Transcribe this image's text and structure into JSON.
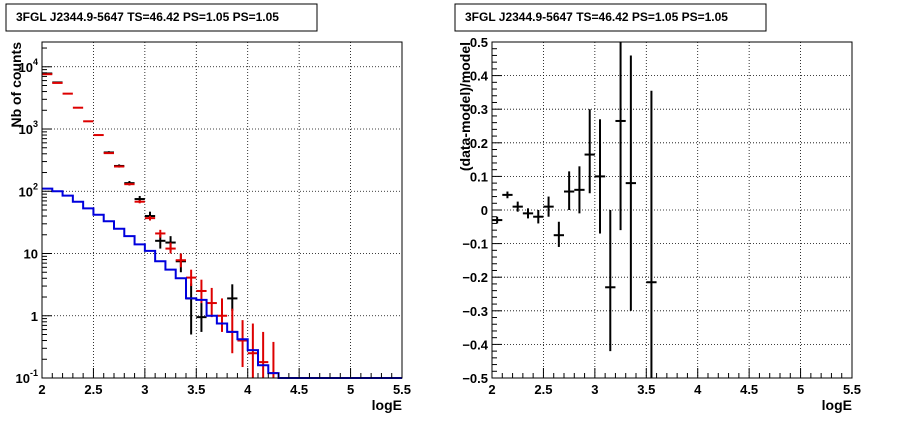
{
  "chart_data": [
    {
      "type": "scatter",
      "title": "3FGL J2344.9-5647 TS=46.42 PS=1.05 PS=1.05",
      "xlabel": "logE",
      "ylabel": "Nb of counts",
      "xlim": [
        2,
        5.5
      ],
      "ylim": [
        0.1,
        25000
      ],
      "yscale": "log",
      "grid": true,
      "x_ticks": [
        "2",
        "2.5",
        "3",
        "3.5",
        "4",
        "4.5",
        "5",
        "5.5"
      ],
      "y_ticks": [
        {
          "value": 0.1,
          "label": "10",
          "sup": "-1"
        },
        {
          "value": 1,
          "label": "1",
          "sup": ""
        },
        {
          "value": 10,
          "label": "10",
          "sup": ""
        },
        {
          "value": 100,
          "label": "10",
          "sup": "2"
        },
        {
          "value": 1000,
          "label": "10",
          "sup": "3"
        },
        {
          "value": 10000,
          "label": "10",
          "sup": "4"
        }
      ],
      "colors": {
        "data": "#000000",
        "model": "#dd0000",
        "background": "#0000dd"
      },
      "series": [
        {
          "kind": "errorbar",
          "color": "#000000",
          "points": [
            {
              "x": 2.05,
              "y": 7800,
              "lo": 7650,
              "hi": 7950
            },
            {
              "x": 2.15,
              "y": 5600,
              "lo": 5450,
              "hi": 5750
            },
            {
              "x": 2.65,
              "y": 420,
              "lo": 400,
              "hi": 440
            },
            {
              "x": 2.75,
              "y": 255,
              "lo": 240,
              "hi": 270
            },
            {
              "x": 2.85,
              "y": 135,
              "lo": 124,
              "hi": 146
            },
            {
              "x": 2.95,
              "y": 75,
              "lo": 66,
              "hi": 84
            },
            {
              "x": 3.05,
              "y": 40,
              "lo": 34,
              "hi": 47
            },
            {
              "x": 3.15,
              "y": 16,
              "lo": 12,
              "hi": 20
            },
            {
              "x": 3.25,
              "y": 15,
              "lo": 11,
              "hi": 19
            },
            {
              "x": 3.35,
              "y": 7.5,
              "lo": 5,
              "hi": 10
            },
            {
              "x": 3.45,
              "y": 1.9,
              "lo": 0.5,
              "hi": 3.3
            },
            {
              "x": 3.55,
              "y": 0.95,
              "lo": 0.55,
              "hi": 1.6
            },
            {
              "x": 3.85,
              "y": 1.9,
              "lo": 1.2,
              "hi": 3.2
            }
          ]
        },
        {
          "kind": "errorbar",
          "color": "#dd0000",
          "points": [
            {
              "x": 2.05,
              "y": 7600,
              "lo": 7500,
              "hi": 7700
            },
            {
              "x": 2.15,
              "y": 5500,
              "lo": 5400,
              "hi": 5600
            },
            {
              "x": 2.25,
              "y": 3700,
              "lo": 3700,
              "hi": 3700
            },
            {
              "x": 2.35,
              "y": 2200,
              "lo": 2200,
              "hi": 2200
            },
            {
              "x": 2.45,
              "y": 1330,
              "lo": 1330,
              "hi": 1330
            },
            {
              "x": 2.55,
              "y": 800,
              "lo": 800,
              "hi": 800
            },
            {
              "x": 2.65,
              "y": 410,
              "lo": 410,
              "hi": 410
            },
            {
              "x": 2.75,
              "y": 250,
              "lo": 250,
              "hi": 250
            },
            {
              "x": 2.85,
              "y": 130,
              "lo": 125,
              "hi": 136
            },
            {
              "x": 2.95,
              "y": 68,
              "lo": 64,
              "hi": 72
            },
            {
              "x": 3.05,
              "y": 37,
              "lo": 34,
              "hi": 40
            },
            {
              "x": 3.15,
              "y": 21,
              "lo": 18,
              "hi": 24
            },
            {
              "x": 3.25,
              "y": 12,
              "lo": 10,
              "hi": 15
            },
            {
              "x": 3.35,
              "y": 7.8,
              "lo": 6,
              "hi": 10
            },
            {
              "x": 3.45,
              "y": 4.1,
              "lo": 3,
              "hi": 5.5
            },
            {
              "x": 3.55,
              "y": 2.5,
              "lo": 1.6,
              "hi": 3.8
            },
            {
              "x": 3.65,
              "y": 1.6,
              "lo": 0.95,
              "hi": 2.8
            },
            {
              "x": 3.75,
              "y": 1.0,
              "lo": 0.55,
              "hi": 1.9
            },
            {
              "x": 3.85,
              "y": 0.55,
              "lo": 0.25,
              "hi": 1.3
            },
            {
              "x": 3.95,
              "y": 0.4,
              "lo": 0.15,
              "hi": 0.85
            },
            {
              "x": 4.05,
              "y": 0.25,
              "lo": 0.1,
              "hi": 0.75
            },
            {
              "x": 4.15,
              "y": 0.18,
              "lo": 0.1,
              "hi": 0.55
            },
            {
              "x": 4.25,
              "y": 0.12,
              "lo": 0.1,
              "hi": 0.38
            }
          ]
        },
        {
          "kind": "step",
          "color": "#0000dd",
          "edges": [
            2.0,
            2.1,
            2.2,
            2.3,
            2.4,
            2.5,
            2.6,
            2.7,
            2.8,
            2.9,
            3.0,
            3.1,
            3.2,
            3.3,
            3.4,
            3.5,
            3.6,
            3.7,
            3.8,
            3.9,
            4.0,
            4.1,
            4.2,
            4.3,
            5.5
          ],
          "values": [
            110,
            100,
            85,
            68,
            53,
            42,
            33,
            25,
            19,
            14,
            11,
            7.5,
            5.5,
            4.0,
            1.9,
            1.8,
            1.0,
            0.75,
            0.55,
            0.42,
            0.28,
            0.16,
            0.12,
            0.1
          ]
        }
      ]
    },
    {
      "type": "scatter",
      "title": "3FGL J2344.9-5647 TS=46.42 PS=1.05 PS=1.05",
      "xlabel": "logE",
      "ylabel": "(data-model)/model",
      "xlim": [
        2,
        5.5
      ],
      "ylim": [
        -0.5,
        0.5
      ],
      "yscale": "linear",
      "grid": true,
      "x_ticks": [
        "2",
        "2.5",
        "3",
        "3.5",
        "4",
        "4.5",
        "5",
        "5.5"
      ],
      "y_ticks": [
        "0.5",
        "0.4",
        "0.3",
        "0.2",
        "0.1",
        "0",
        "−0.1",
        "−0.2",
        "−0.3",
        "−0.4",
        "−0.5"
      ],
      "series": [
        {
          "kind": "errorbar",
          "color": "#000000",
          "points": [
            {
              "x": 2.05,
              "y": -0.03,
              "lo": -0.04,
              "hi": -0.02
            },
            {
              "x": 2.15,
              "y": 0.045,
              "lo": 0.035,
              "hi": 0.055
            },
            {
              "x": 2.25,
              "y": 0.01,
              "lo": -0.005,
              "hi": 0.025
            },
            {
              "x": 2.35,
              "y": -0.01,
              "lo": -0.025,
              "hi": 0.005
            },
            {
              "x": 2.45,
              "y": -0.02,
              "lo": -0.04,
              "hi": 0.0
            },
            {
              "x": 2.55,
              "y": 0.01,
              "lo": -0.02,
              "hi": 0.04
            },
            {
              "x": 2.65,
              "y": -0.075,
              "lo": -0.11,
              "hi": -0.035
            },
            {
              "x": 2.75,
              "y": 0.055,
              "lo": 0.0,
              "hi": 0.115
            },
            {
              "x": 2.85,
              "y": 0.06,
              "lo": -0.01,
              "hi": 0.13
            },
            {
              "x": 2.95,
              "y": 0.165,
              "lo": 0.05,
              "hi": 0.3
            },
            {
              "x": 3.05,
              "y": 0.1,
              "lo": -0.07,
              "hi": 0.27
            },
            {
              "x": 3.15,
              "y": -0.23,
              "lo": -0.42,
              "hi": 0.0
            },
            {
              "x": 3.25,
              "y": 0.265,
              "lo": -0.06,
              "hi": 0.5
            },
            {
              "x": 3.35,
              "y": 0.08,
              "lo": -0.3,
              "hi": 0.46
            },
            {
              "x": 3.55,
              "y": -0.215,
              "lo": -0.5,
              "hi": 0.355
            }
          ]
        }
      ]
    }
  ]
}
